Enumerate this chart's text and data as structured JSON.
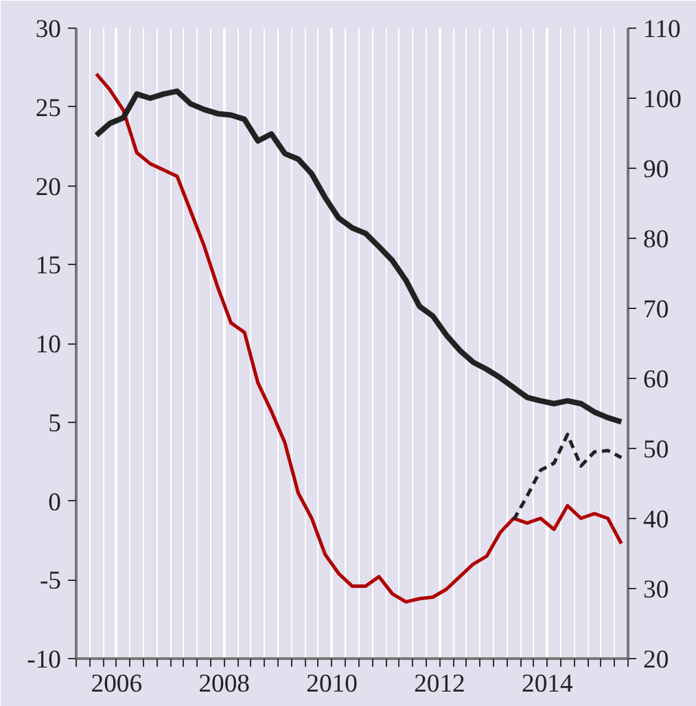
{
  "chart_data": {
    "type": "line",
    "xlim": [
      2005.75,
      2016
    ],
    "xticks": [
      {
        "value": 2006.5,
        "label": "2006"
      },
      {
        "value": 2008.5,
        "label": "2008"
      },
      {
        "value": 2010.5,
        "label": "2010"
      },
      {
        "value": 2012.5,
        "label": "2012"
      },
      {
        "value": 2014.5,
        "label": "2014"
      }
    ],
    "ylim": [
      -10,
      30
    ],
    "yticks": [
      -10,
      -5,
      0,
      5,
      10,
      15,
      20,
      25,
      30
    ],
    "y2lim": [
      20,
      110
    ],
    "y2ticks": [
      20,
      30,
      40,
      50,
      60,
      70,
      80,
      90,
      100,
      110
    ],
    "grid": "x",
    "x": [
      2006.125,
      2006.375,
      2006.625,
      2006.875,
      2007.125,
      2007.375,
      2007.625,
      2007.875,
      2008.125,
      2008.375,
      2008.625,
      2008.875,
      2009.125,
      2009.375,
      2009.625,
      2009.875,
      2010.125,
      2010.375,
      2010.625,
      2010.875,
      2011.125,
      2011.375,
      2011.625,
      2011.875,
      2012.125,
      2012.375,
      2012.625,
      2012.875,
      2013.125,
      2013.375,
      2013.625,
      2013.875,
      2014.125,
      2014.375,
      2014.625,
      2014.875,
      2015.125,
      2015.375,
      2015.625,
      2015.875
    ],
    "series": [
      {
        "color": "#b00000",
        "line_style": "solid",
        "values": [
          27.1,
          26.1,
          24.8,
          22.1,
          21.4,
          21.0,
          20.6,
          18.4,
          16.2,
          13.6,
          11.3,
          10.7,
          7.5,
          5.7,
          3.7,
          0.5,
          -1.1,
          -3.4,
          -4.6,
          -5.4,
          -5.4,
          -4.8,
          -5.9,
          -6.4,
          -6.2,
          -6.1,
          -5.6,
          -4.8,
          -4.0,
          -3.5,
          -2.0,
          -1.1,
          -1.4,
          -1.1,
          -1.8,
          -0.3,
          -1.1,
          -0.8,
          -1.1,
          -2.7
        ]
      },
      {
        "color": "#222222",
        "line_style": "solid",
        "axis": "y2",
        "values": [
          94.7,
          96.4,
          97.2,
          100.6,
          100.0,
          100.6,
          101.0,
          99.2,
          98.4,
          97.8,
          97.6,
          97.0,
          93.9,
          94.9,
          92.1,
          91.3,
          89.2,
          85.8,
          82.9,
          81.5,
          80.7,
          78.8,
          76.8,
          74.0,
          70.3,
          68.9,
          66.2,
          64.0,
          62.3,
          61.3,
          60.1,
          58.7,
          57.3,
          56.8,
          56.4,
          56.8,
          56.4,
          55.2,
          54.4,
          53.8
        ]
      },
      {
        "color": "#222222",
        "line_style": "dashed",
        "axis": "y2",
        "values": [
          null,
          null,
          null,
          null,
          null,
          null,
          null,
          null,
          null,
          null,
          null,
          null,
          null,
          null,
          null,
          null,
          null,
          null,
          null,
          null,
          null,
          null,
          null,
          null,
          null,
          null,
          null,
          null,
          null,
          null,
          null,
          39.8,
          43.2,
          46.9,
          47.9,
          52.0,
          47.5,
          49.5,
          49.7,
          48.7
        ]
      }
    ]
  }
}
